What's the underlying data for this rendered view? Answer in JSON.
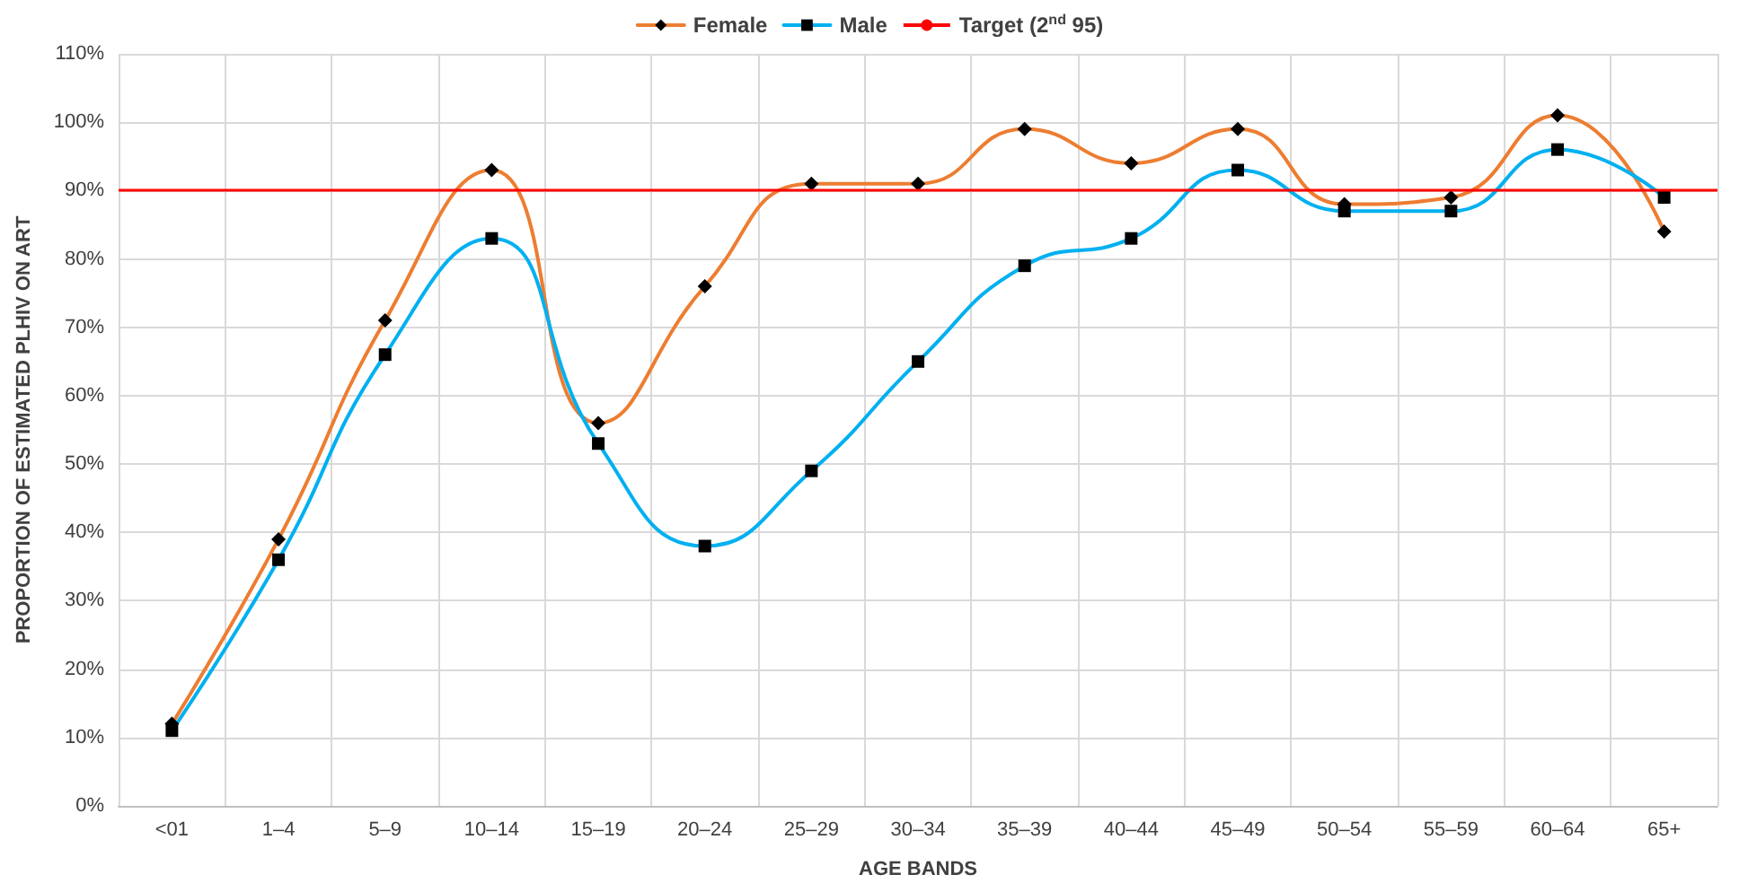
{
  "chart_data": {
    "type": "line",
    "xlabel": "AGE BANDS",
    "ylabel": "PROPORTION OF ESTIMATED PLHIV ON ART",
    "categories": [
      "<01",
      "1–4",
      "5–9",
      "10–14",
      "15–19",
      "20–24",
      "25–29",
      "30–34",
      "35–39",
      "40–44",
      "45–49",
      "50–54",
      "55–59",
      "60–64",
      "65+"
    ],
    "series": [
      {
        "name": "Female",
        "color": "#ed7d31",
        "marker": "diamond",
        "values": [
          12,
          39,
          71,
          93,
          56,
          76,
          91,
          91,
          99,
          94,
          99,
          88,
          89,
          101,
          84
        ]
      },
      {
        "name": "Male",
        "color": "#00b0f0",
        "marker": "square",
        "values": [
          11,
          36,
          66,
          83,
          53,
          38,
          49,
          65,
          79,
          83,
          93,
          87,
          87,
          96,
          89
        ]
      }
    ],
    "ref_lines": [
      {
        "axis": "y",
        "value": 90,
        "label": "Target (2$^{nd}$ 95)",
        "color": "#ff0000"
      }
    ],
    "ylim": [
      0,
      110
    ],
    "yticks": [
      {
        "value": 0,
        "label": "0%"
      },
      {
        "value": 10,
        "label": "10%"
      },
      {
        "value": 20,
        "label": "20%"
      },
      {
        "value": 30,
        "label": "30%"
      },
      {
        "value": 40,
        "label": "40%"
      },
      {
        "value": 50,
        "label": "50%"
      },
      {
        "value": 60,
        "label": "60%"
      },
      {
        "value": 70,
        "label": "70%"
      },
      {
        "value": 80,
        "label": "80%"
      },
      {
        "value": 90,
        "label": "90%"
      },
      {
        "value": 100,
        "label": "100%"
      },
      {
        "value": 110,
        "label": "110%"
      }
    ],
    "grid": true,
    "legend": "top",
    "line_style": "solid"
  }
}
